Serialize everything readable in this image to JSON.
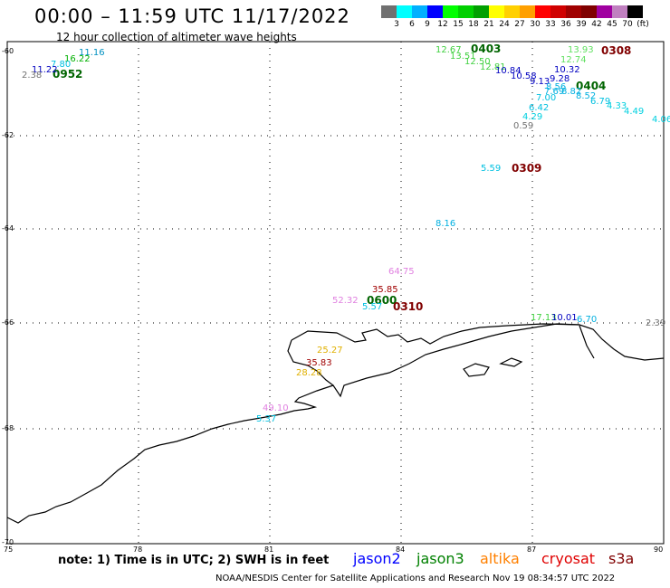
{
  "title": "00:00 – 11:59 UTC 11/17/2022",
  "subtitle": "12 hour collection of altimeter wave heights",
  "colorbar": {
    "colors": [
      "#707070",
      "#00ffff",
      "#00b0ff",
      "#0000ff",
      "#00ff00",
      "#00d000",
      "#00a000",
      "#ffff00",
      "#ffd000",
      "#ffa000",
      "#ff0000",
      "#d00000",
      "#a00000",
      "#800000",
      "#a000a0",
      "#c080c0",
      "#000000"
    ],
    "labels": [
      "3",
      "6",
      "9",
      "12",
      "15",
      "18",
      "21",
      "24",
      "27",
      "30",
      "33",
      "36",
      "39",
      "42",
      "45",
      "70",
      "(ft)"
    ]
  },
  "axes": {
    "lon_labels": [
      "75",
      "78",
      "81",
      "84",
      "87",
      "90"
    ],
    "lat_labels": [
      "-60",
      "-62",
      "-64",
      "-66",
      "-68",
      "-70"
    ]
  },
  "obs_times": [
    {
      "text": "0952",
      "color": "#006400"
    },
    {
      "text": "0403",
      "color": "#006400"
    },
    {
      "text": "0308",
      "color": "#800000"
    },
    {
      "text": "0404",
      "color": "#006400"
    },
    {
      "text": "0309",
      "color": "#800000"
    },
    {
      "text": "0600",
      "color": "#006400"
    },
    {
      "text": "0310",
      "color": "#800000"
    }
  ],
  "swh_values": [
    {
      "text": "11.16",
      "color": "#0090c0"
    },
    {
      "text": "16.22",
      "color": "#00b000"
    },
    {
      "text": "7.80",
      "color": "#00c0e0"
    },
    {
      "text": "11.22",
      "color": "#0000c0"
    },
    {
      "text": "2.38",
      "color": "#707070"
    },
    {
      "text": "12.67",
      "color": "#40d040"
    },
    {
      "text": "13.51",
      "color": "#40d040"
    },
    {
      "text": "12.50",
      "color": "#40d040"
    },
    {
      "text": "12.81",
      "color": "#40d040"
    },
    {
      "text": "10.84",
      "color": "#0000c0"
    },
    {
      "text": "10.58",
      "color": "#0000c0"
    },
    {
      "text": "9.13",
      "color": "#0000c0"
    },
    {
      "text": "13.93",
      "color": "#60e060"
    },
    {
      "text": "12.74",
      "color": "#60e060"
    },
    {
      "text": "10.32",
      "color": "#0000c0"
    },
    {
      "text": "9.28",
      "color": "#0000c0"
    },
    {
      "text": "8.56",
      "color": "#00b0e0"
    },
    {
      "text": "7.69",
      "color": "#00b0e0"
    },
    {
      "text": "8.82",
      "color": "#00b0e0"
    },
    {
      "text": "8.52",
      "color": "#00b0e0"
    },
    {
      "text": "7.00",
      "color": "#00c0e0"
    },
    {
      "text": "6.79",
      "color": "#00c0e0"
    },
    {
      "text": "6.42",
      "color": "#00c0e0"
    },
    {
      "text": "4.33",
      "color": "#00d0e0"
    },
    {
      "text": "4.49",
      "color": "#00d0e0"
    },
    {
      "text": "4.06",
      "color": "#00d0e0"
    },
    {
      "text": "4.29",
      "color": "#00d0e0"
    },
    {
      "text": "0.59",
      "color": "#707070"
    },
    {
      "text": "5.59",
      "color": "#00c0e0"
    },
    {
      "text": "8.16",
      "color": "#00b0e0"
    },
    {
      "text": "64.75",
      "color": "#e080e0"
    },
    {
      "text": "35.85",
      "color": "#a00000"
    },
    {
      "text": "52.32",
      "color": "#e080e0"
    },
    {
      "text": "5.57",
      "color": "#00c0e0"
    },
    {
      "text": "17.13",
      "color": "#40d040"
    },
    {
      "text": "10.01",
      "color": "#0000c0"
    },
    {
      "text": "6.70",
      "color": "#00b0e0"
    },
    {
      "text": "2.39",
      "color": "#707070"
    },
    {
      "text": "25.27",
      "color": "#e0b000"
    },
    {
      "text": "35.83",
      "color": "#a00000"
    },
    {
      "text": "28.28",
      "color": "#e0b000"
    },
    {
      "text": "49.10",
      "color": "#e080e0"
    },
    {
      "text": "5.37",
      "color": "#00c0e0"
    }
  ],
  "note": "note:  1) Time is in UTC;  2) SWH is in feet",
  "satellites": [
    {
      "name": "jason2",
      "color": "#0000ff"
    },
    {
      "name": "jason3",
      "color": "#008000"
    },
    {
      "name": "altika",
      "color": "#ff8000"
    },
    {
      "name": "cryosat",
      "color": "#e00000"
    },
    {
      "name": "s3a",
      "color": "#800000"
    }
  ],
  "credit": "NOAA/NESDIS Center for Satellite Applications and Research   Nov 19 08:34:57 UTC 2022"
}
